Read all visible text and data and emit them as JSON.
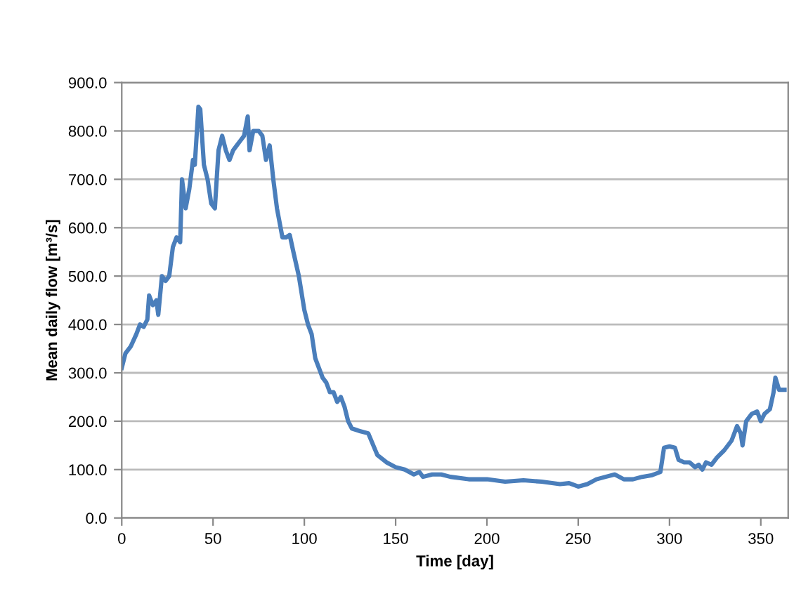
{
  "chart_data": {
    "type": "line",
    "xlabel": "Time [day]",
    "ylabel": "Mean daily flow [m³/s]",
    "xlim": [
      0,
      365
    ],
    "xticks": [
      0,
      50,
      100,
      150,
      200,
      250,
      300,
      350
    ],
    "ylim": [
      0,
      900
    ],
    "yticks": [
      {
        "value": 0,
        "label": "0.0"
      },
      {
        "value": 100,
        "label": "100.0"
      },
      {
        "value": 200,
        "label": "200.0"
      },
      {
        "value": 300,
        "label": "300.0"
      },
      {
        "value": 400,
        "label": "400.0"
      },
      {
        "value": 500,
        "label": "500.0"
      },
      {
        "value": 600,
        "label": "600.0"
      },
      {
        "value": 700,
        "label": "700.0"
      },
      {
        "value": 800,
        "label": "800.0"
      },
      {
        "value": 900,
        "label": "900.0"
      }
    ],
    "grid": "y",
    "legend": false,
    "marker": "none",
    "line_style": "solid",
    "series": [
      {
        "color": "#4a7ebb",
        "x": [
          0,
          2,
          5,
          8,
          10,
          12,
          14,
          15,
          17,
          19,
          20,
          22,
          24,
          26,
          28,
          30,
          32,
          33,
          35,
          37,
          39,
          40,
          42,
          43,
          45,
          47,
          49,
          51,
          53,
          55,
          57,
          59,
          61,
          63,
          65,
          67,
          69,
          70,
          72,
          75,
          77,
          79,
          81,
          83,
          85,
          88,
          90,
          92,
          94,
          97,
          100,
          102,
          104,
          106,
          108,
          110,
          112,
          114,
          116,
          118,
          120,
          122,
          124,
          126,
          130,
          135,
          140,
          145,
          150,
          155,
          160,
          163,
          165,
          170,
          175,
          180,
          190,
          200,
          210,
          220,
          230,
          240,
          245,
          250,
          255,
          260,
          265,
          270,
          275,
          280,
          285,
          290,
          295,
          297,
          300,
          303,
          305,
          308,
          311,
          314,
          316,
          318,
          320,
          323,
          326,
          330,
          334,
          337,
          339,
          340,
          342,
          345,
          348,
          350,
          352,
          355,
          357,
          358,
          360,
          363
        ],
        "values": [
          310,
          340,
          355,
          380,
          400,
          395,
          410,
          460,
          440,
          450,
          420,
          500,
          490,
          500,
          560,
          580,
          570,
          700,
          640,
          680,
          740,
          730,
          850,
          845,
          730,
          700,
          650,
          640,
          760,
          790,
          760,
          740,
          760,
          770,
          780,
          790,
          830,
          760,
          800,
          800,
          790,
          740,
          770,
          700,
          640,
          580,
          580,
          585,
          550,
          500,
          430,
          400,
          380,
          330,
          310,
          290,
          280,
          260,
          260,
          240,
          250,
          230,
          200,
          185,
          180,
          175,
          130,
          115,
          105,
          100,
          90,
          95,
          85,
          90,
          90,
          85,
          80,
          80,
          75,
          78,
          75,
          70,
          72,
          65,
          70,
          80,
          85,
          90,
          80,
          80,
          85,
          88,
          95,
          145,
          148,
          145,
          120,
          115,
          115,
          105,
          110,
          100,
          115,
          110,
          125,
          140,
          160,
          190,
          175,
          150,
          200,
          215,
          220,
          200,
          215,
          225,
          260,
          290,
          265,
          265
        ]
      }
    ]
  }
}
